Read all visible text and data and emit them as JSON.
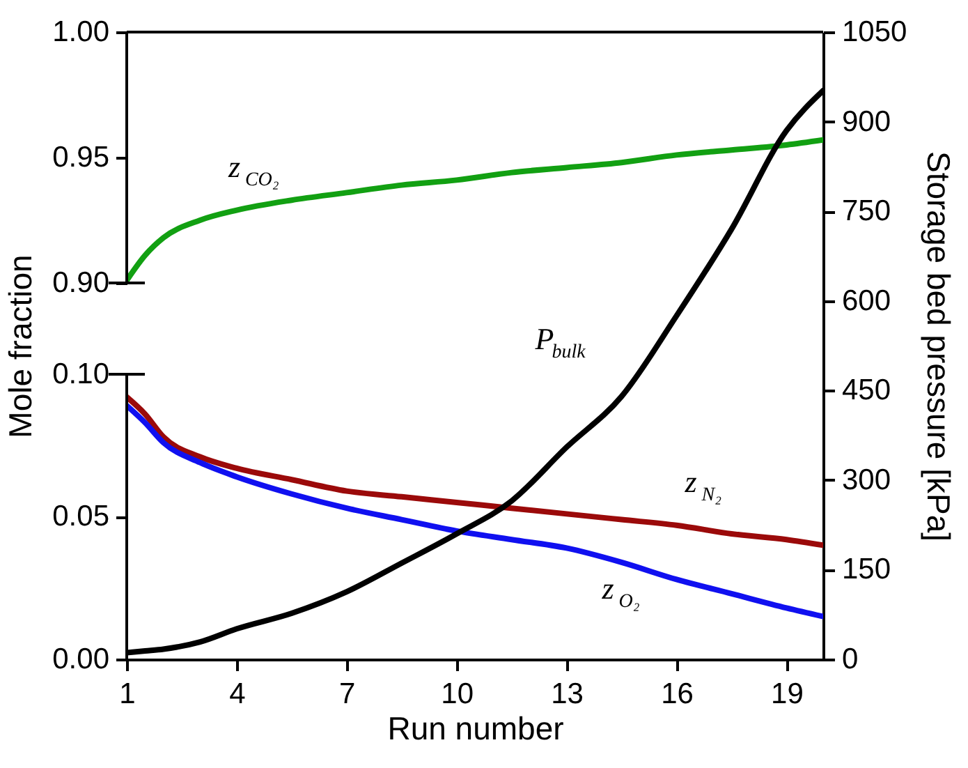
{
  "chart_data": {
    "type": "line",
    "xlabel": "Run number",
    "ylabel": "Mole fraction",
    "y2label": "Storage bed pressure [kPa]",
    "x": [
      1,
      1.5,
      2,
      3,
      4,
      5.5,
      7,
      8.5,
      10,
      11.5,
      13,
      14.5,
      16,
      17.5,
      19,
      20
    ],
    "xlim": [
      1,
      20
    ],
    "xticks": [
      1,
      4,
      7,
      10,
      13,
      16,
      19
    ],
    "ylim": [
      0,
      0.22
    ],
    "yticks": [
      {
        "value": 0,
        "label": "0.00"
      },
      0.05,
      {
        "value": 0.1,
        "label": "0.10"
      }
    ],
    "y3lim": [
      0.75,
      1.0
    ],
    "y3ticks": [
      {
        "value": 0.9,
        "label": "0.90"
      },
      0.95,
      {
        "value": 1.0,
        "label": "1.00"
      }
    ],
    "y2lim": [
      0,
      1050
    ],
    "y2ticks": [
      0,
      150,
      300,
      450,
      600,
      750,
      900,
      1050
    ],
    "series": [
      {
        "name": "z$_{CO₂}$",
        "color": "#12a012",
        "axis": "y3",
        "values": [
          0.901,
          0.911,
          0.918,
          0.925,
          0.929,
          0.933,
          0.936,
          0.939,
          0.941,
          0.944,
          0.946,
          0.948,
          0.951,
          0.953,
          0.955,
          0.957
        ]
      },
      {
        "name": "z$_{N₂}$",
        "color": "#9b0a0a",
        "values": [
          0.092,
          0.086,
          0.078,
          0.071,
          0.067,
          0.063,
          0.059,
          0.057,
          0.055,
          0.053,
          0.051,
          0.049,
          0.047,
          0.044,
          0.042,
          0.04
        ]
      },
      {
        "name": "z$_{O₂}$",
        "color": "#1010f0",
        "values": [
          0.089,
          0.083,
          0.076,
          0.069,
          0.064,
          0.058,
          0.053,
          0.049,
          0.045,
          0.042,
          0.039,
          0.034,
          0.028,
          0.023,
          0.018,
          0.015
        ]
      },
      {
        "name": "P$_{bulk}$",
        "color": "#000000",
        "axis": "y2",
        "values": [
          11,
          14,
          17,
          29,
          51,
          77,
          113,
          161,
          210,
          265,
          355,
          440,
          575,
          720,
          885,
          952
        ]
      }
    ]
  }
}
